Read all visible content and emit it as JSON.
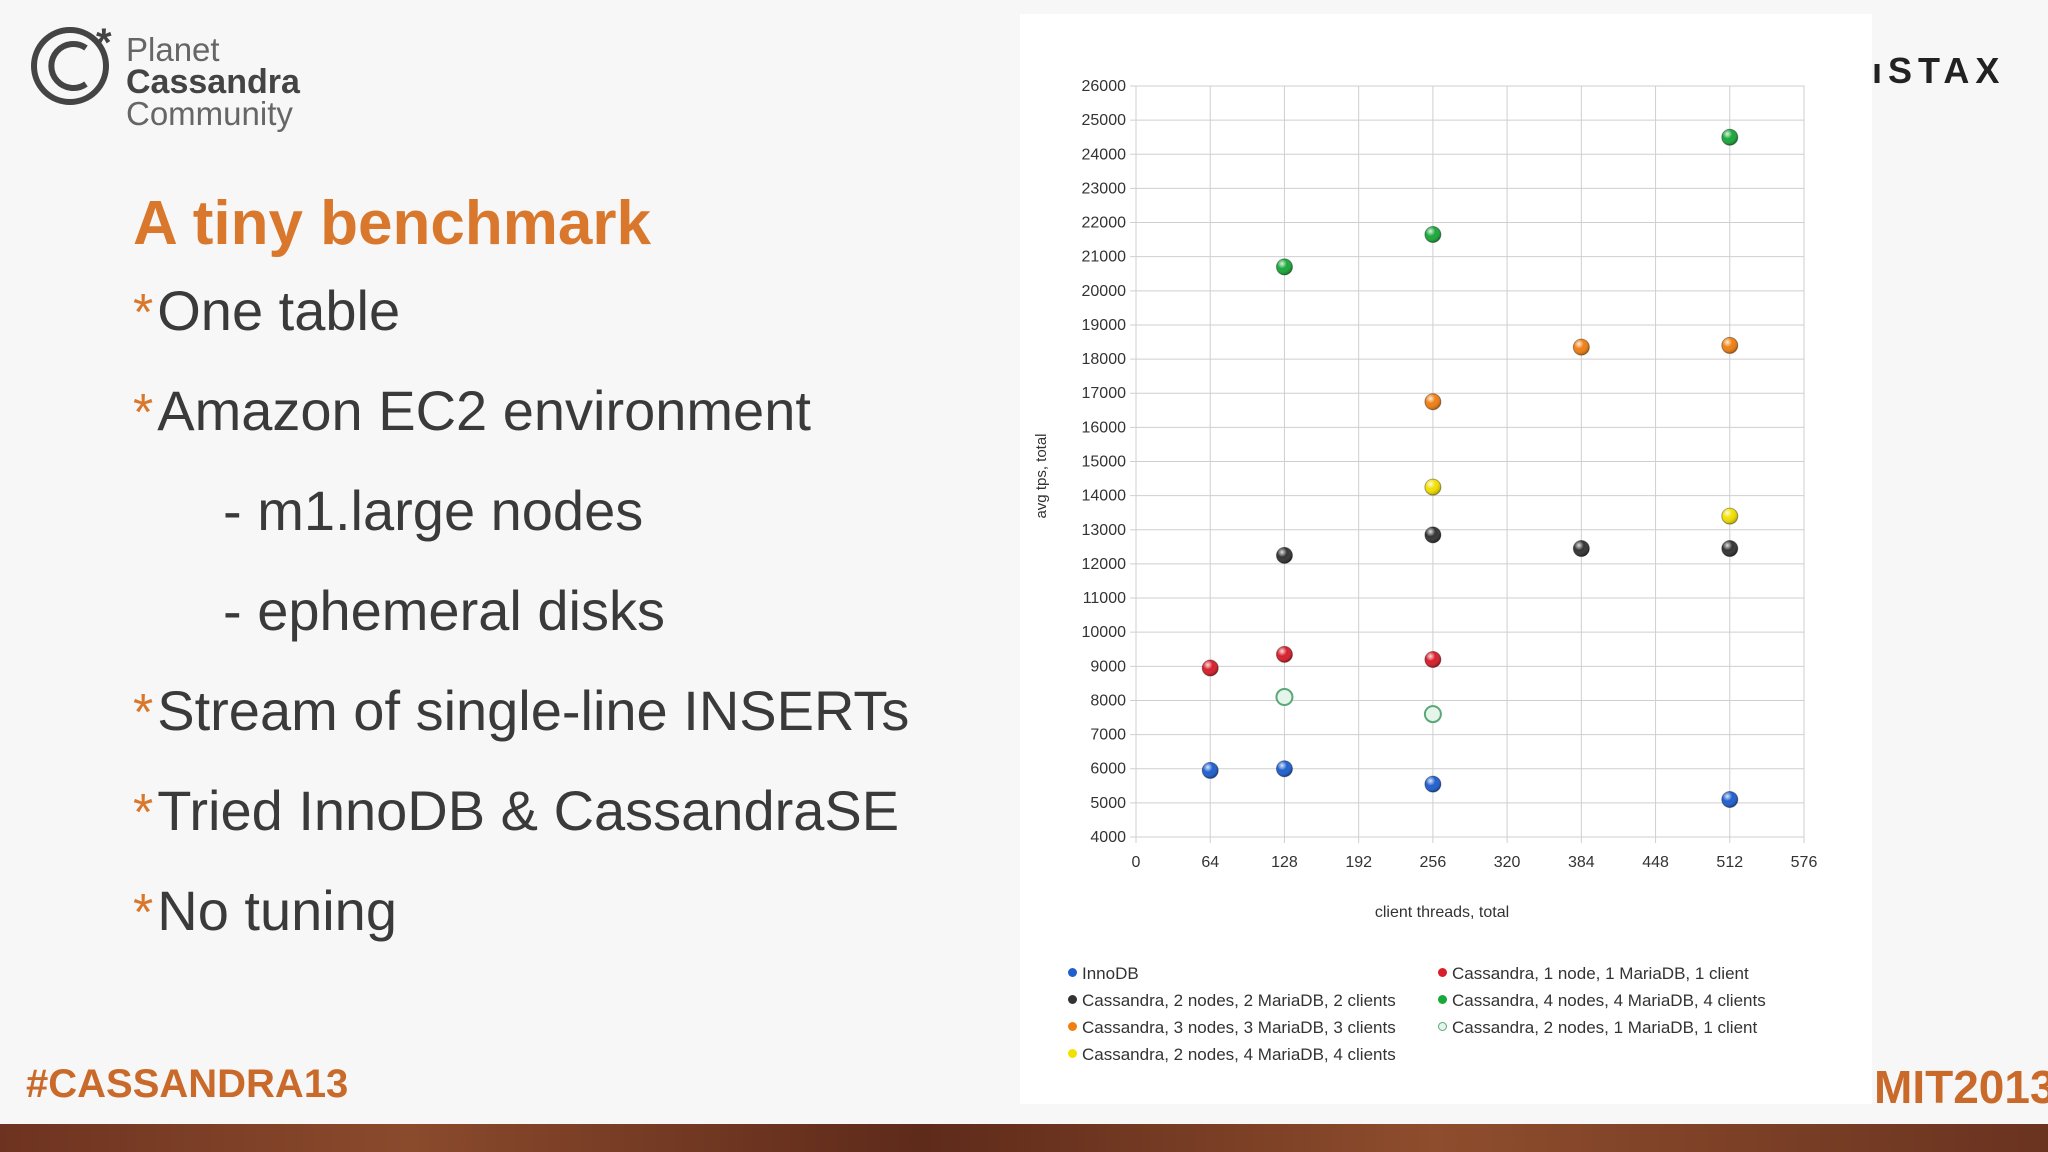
{
  "logo": {
    "line1": "Planet",
    "line2": "Cassandra",
    "line3": "Community"
  },
  "slide": {
    "title": "A tiny benchmark",
    "bullets": [
      {
        "text": "One table",
        "level": 1
      },
      {
        "text": "Amazon EC2 environment",
        "level": 1
      },
      {
        "text": "- m1.large nodes",
        "level": 2
      },
      {
        "text": "- ephemeral disks",
        "level": 2
      },
      {
        "text": "Stream of single-line INSERTs",
        "level": 1
      },
      {
        "text": "Tried InnoDB & CassandraSE",
        "level": 1
      },
      {
        "text": "No tuning",
        "level": 1
      }
    ],
    "bullet_marker": "*",
    "hashtag": "#CASSANDRA13",
    "brand_partial": "ıSTAX",
    "summit_partial": "MIT2013",
    "accent_color": "#d9782c"
  },
  "chart_data": {
    "type": "scatter",
    "xlabel": "client threads, total",
    "ylabel": "avg tps, total",
    "xlim": [
      0,
      576
    ],
    "ylim": [
      4000,
      26000
    ],
    "xticks": [
      0,
      64,
      128,
      192,
      256,
      320,
      384,
      448,
      512,
      576
    ],
    "yticks": [
      4000,
      5000,
      6000,
      7000,
      8000,
      9000,
      10000,
      11000,
      12000,
      13000,
      14000,
      15000,
      16000,
      17000,
      18000,
      19000,
      20000,
      21000,
      22000,
      23000,
      24000,
      25000,
      26000
    ],
    "grid": true,
    "legend_position": "bottom",
    "series": [
      {
        "name": "InnoDB",
        "color": "#1f5fd0",
        "points": [
          [
            64,
            5950
          ],
          [
            128,
            6000
          ],
          [
            256,
            5550
          ],
          [
            512,
            5100
          ]
        ]
      },
      {
        "name": "Cassandra, 1 node, 1 MariaDB, 1 client",
        "color": "#d81e2a",
        "points": [
          [
            64,
            8950
          ],
          [
            128,
            9350
          ],
          [
            256,
            9200
          ]
        ]
      },
      {
        "name": "Cassandra, 2 nodes, 2 MariaDB, 2 clients",
        "color": "#333333",
        "points": [
          [
            128,
            12250
          ],
          [
            256,
            12850
          ],
          [
            384,
            12450
          ],
          [
            512,
            12450
          ]
        ]
      },
      {
        "name": "Cassandra, 4 nodes, 4 MariaDB, 4 clients",
        "color": "#19a83a",
        "points": [
          [
            128,
            20700
          ],
          [
            256,
            21650
          ],
          [
            512,
            24500
          ]
        ]
      },
      {
        "name": "Cassandra, 3 nodes, 3 MariaDB, 3 clients",
        "color": "#f07f12",
        "points": [
          [
            256,
            16750
          ],
          [
            384,
            18350
          ],
          [
            512,
            18400
          ]
        ]
      },
      {
        "name": "Cassandra, 2 nodes, 1 MariaDB, 1 client",
        "color": "#9cd6b0",
        "hollow": true,
        "points": [
          [
            128,
            8100
          ],
          [
            256,
            7600
          ]
        ]
      },
      {
        "name": "Cassandra, 2 nodes, 4 MariaDB, 4 clients",
        "color": "#f2e000",
        "points": [
          [
            256,
            14250
          ],
          [
            512,
            13400
          ]
        ]
      }
    ]
  }
}
